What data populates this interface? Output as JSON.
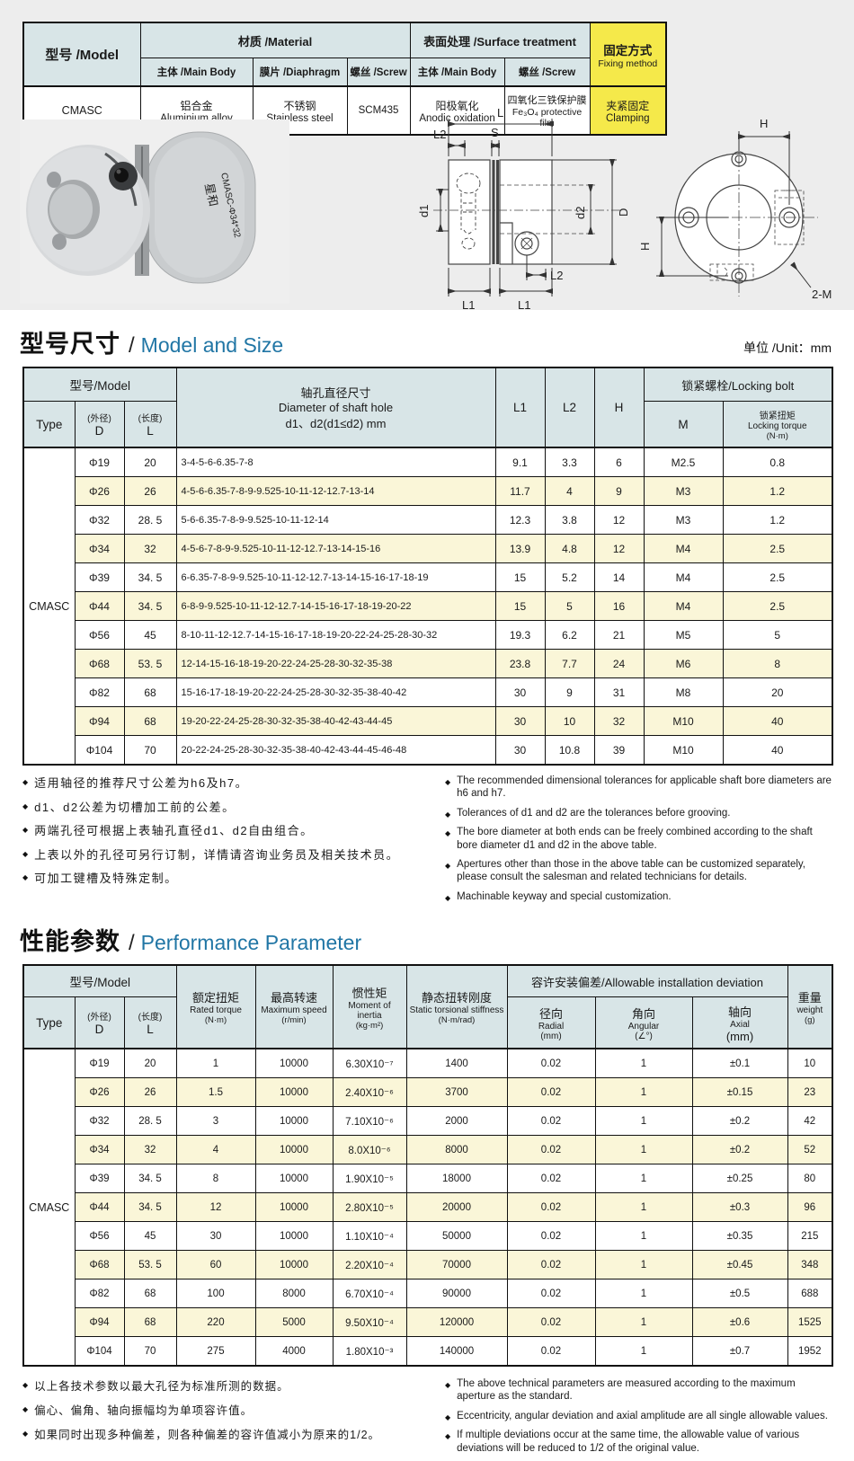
{
  "colors": {
    "accent_blue": "#2176a5",
    "header_bg": "#d8e5e7",
    "stripe_yellow": "#faf6d8",
    "highlight_yellow": "#f5e94a",
    "hero_grey": "#ededed"
  },
  "spec_table": {
    "header": {
      "model": "型号 /Model",
      "material": "材质 /Material",
      "surface": "表面处理 /Surface treatment",
      "fixing_zh": "固定方式",
      "fixing_en": "Fixing method",
      "main_body": "主体 /Main Body",
      "diaphragm": "膜片 /Diaphragm",
      "screw": "螺丝 /Screw",
      "surface_main_body": "主体 /Main Body",
      "surface_screw": "螺丝 /Screw"
    },
    "row": {
      "model": "CMASC",
      "main_body_zh": "铝合金",
      "main_body_en": "Aluminium alloy",
      "diaphragm_zh": "不锈钢",
      "diaphragm_en": "Stainless steel",
      "screw": "SCM435",
      "surface_main_zh": "阳极氧化",
      "surface_main_en": "Anodic oxidation",
      "surface_screw_zh": "四氧化三铁保护膜",
      "surface_screw_en": "Fe₃O₄ protective film",
      "fixing_zh": "夹紧固定",
      "fixing_en": "Clamping"
    }
  },
  "photo": {
    "brand": "星和",
    "model": "CMASC-Φ34*32"
  },
  "drawing_side": {
    "L": "L",
    "L2_top": "L2",
    "S": "S",
    "d1": "d1",
    "d2": "d2",
    "D": "D",
    "L1_left": "L1",
    "L1_right": "L1",
    "L2_bottom": "L2"
  },
  "drawing_front": {
    "H_top": "H",
    "H_left": "H",
    "bolt_label": "2-M"
  },
  "size_section": {
    "title_zh": "型号尺寸",
    "sep": "/",
    "title_en": "Model and Size",
    "unit": "单位 /Unit：mm"
  },
  "size_table": {
    "header": {
      "model_group": "型号/Model",
      "type": "Type",
      "d_zh": "(外径)",
      "d": "D",
      "l_zh": "(长度)",
      "l": "L",
      "diameter_zh": "轴孔直径尺寸",
      "diameter_en1": "Diameter of shaft hole",
      "diameter_en2": "d1、d2(d1≤d2) mm",
      "l1": "L1",
      "l2": "L2",
      "h": "H",
      "locking_group": "锁紧螺栓/Locking bolt",
      "m": "M",
      "torque_zh": "锁紧扭矩",
      "torque_en": "Locking torque",
      "torque_unit": "(N·m)"
    },
    "type_value": "CMASC",
    "rows": [
      [
        "Φ19",
        "20",
        "3-4-5-6-6.35-7-8",
        "9.1",
        "3.3",
        "6",
        "M2.5",
        "0.8"
      ],
      [
        "Φ26",
        "26",
        "4-5-6-6.35-7-8-9-9.525-10-11-12-12.7-13-14",
        "11.7",
        "4",
        "9",
        "M3",
        "1.2"
      ],
      [
        "Φ32",
        "28. 5",
        "5-6-6.35-7-8-9-9.525-10-11-12-14",
        "12.3",
        "3.8",
        "12",
        "M3",
        "1.2"
      ],
      [
        "Φ34",
        "32",
        "4-5-6-7-8-9-9.525-10-11-12-12.7-13-14-15-16",
        "13.9",
        "4.8",
        "12",
        "M4",
        "2.5"
      ],
      [
        "Φ39",
        "34. 5",
        "6-6.35-7-8-9-9.525-10-11-12-12.7-13-14-15-16-17-18-19",
        "15",
        "5.2",
        "14",
        "M4",
        "2.5"
      ],
      [
        "Φ44",
        "34. 5",
        "6-8-9-9.525-10-11-12-12.7-14-15-16-17-18-19-20-22",
        "15",
        "5",
        "16",
        "M4",
        "2.5"
      ],
      [
        "Φ56",
        "45",
        "8-10-11-12-12.7-14-15-16-17-18-19-20-22-24-25-28-30-32",
        "19.3",
        "6.2",
        "21",
        "M5",
        "5"
      ],
      [
        "Φ68",
        "53. 5",
        "12-14-15-16-18-19-20-22-24-25-28-30-32-35-38",
        "23.8",
        "7.7",
        "24",
        "M6",
        "8"
      ],
      [
        "Φ82",
        "68",
        "15-16-17-18-19-20-22-24-25-28-30-32-35-38-40-42",
        "30",
        "9",
        "31",
        "M8",
        "20"
      ],
      [
        "Φ94",
        "68",
        "19-20-22-24-25-28-30-32-35-38-40-42-43-44-45",
        "30",
        "10",
        "32",
        "M10",
        "40"
      ],
      [
        "Φ104",
        "70",
        "20-22-24-25-28-30-32-35-38-40-42-43-44-45-46-48",
        "30",
        "10.8",
        "39",
        "M10",
        "40"
      ]
    ]
  },
  "notes_mid": {
    "bullet_icon": "◆",
    "zh": [
      "适用轴径的推荐尺寸公差为h6及h7。",
      "d1、d2公差为切槽加工前的公差。",
      "两端孔径可根据上表轴孔直径d1、d2自由组合。",
      "上表以外的孔径可另行订制，详情请咨询业务员及相关技术员。",
      "可加工键槽及特殊定制。"
    ],
    "en": [
      "The recommended dimensional tolerances for applicable shaft bore diameters are h6 and h7.",
      "Tolerances of d1 and d2 are the tolerances before grooving.",
      "The bore diameter at both ends can be freely combined according to the shaft bore diameter d1 and d2 in the above table.",
      "Apertures other than those in the above table can be customized separately, please consult the salesman and related technicians for details.",
      "Machinable keyway and special customization."
    ]
  },
  "perf_section": {
    "title_zh": "性能参数",
    "sep": "/",
    "title_en": "Performance Parameter"
  },
  "perf_table": {
    "header": {
      "model_group": "型号/Model",
      "type": "Type",
      "d_zh": "(外径)",
      "d": "D",
      "l_zh": "(长度)",
      "l": "L",
      "torque_zh": "额定扭矩",
      "torque_en": "Rated torque",
      "torque_unit": "(N·m)",
      "speed_zh": "最高转速",
      "speed_en": "Maximum speed",
      "speed_unit": "(r/min)",
      "inertia_zh": "惯性矩",
      "inertia_en": "Moment of inertia",
      "inertia_unit": "(kg·m²)",
      "stiffness_zh": "静态扭转刚度",
      "stiffness_en": "Static torsional stiffness",
      "stiffness_unit": "(N·m/rad)",
      "deviation_group": "容许安装偏差/Allowable installation deviation",
      "radial_zh": "径向",
      "radial_en": "Radial",
      "radial_unit": "(mm)",
      "angular_zh": "角向",
      "angular_en": "Angular",
      "angular_unit": "(∠°)",
      "axial_zh": "轴向",
      "axial_en": "Axial",
      "axial_unit": "(mm)",
      "weight_zh": "重量",
      "weight_en": "weight",
      "weight_unit": "(g)"
    },
    "type_value": "CMASC",
    "rows": [
      [
        "Φ19",
        "20",
        "1",
        "10000",
        "6.30X10⁻⁷",
        "1400",
        "0.02",
        "1",
        "±0.1",
        "10"
      ],
      [
        "Φ26",
        "26",
        "1.5",
        "10000",
        "2.40X10⁻⁶",
        "3700",
        "0.02",
        "1",
        "±0.15",
        "23"
      ],
      [
        "Φ32",
        "28. 5",
        "3",
        "10000",
        "7.10X10⁻⁶",
        "2000",
        "0.02",
        "1",
        "±0.2",
        "42"
      ],
      [
        "Φ34",
        "32",
        "4",
        "10000",
        "8.0X10⁻⁶",
        "8000",
        "0.02",
        "1",
        "±0.2",
        "52"
      ],
      [
        "Φ39",
        "34. 5",
        "8",
        "10000",
        "1.90X10⁻⁵",
        "18000",
        "0.02",
        "1",
        "±0.25",
        "80"
      ],
      [
        "Φ44",
        "34. 5",
        "12",
        "10000",
        "2.80X10⁻⁵",
        "20000",
        "0.02",
        "1",
        "±0.3",
        "96"
      ],
      [
        "Φ56",
        "45",
        "30",
        "10000",
        "1.10X10⁻⁴",
        "50000",
        "0.02",
        "1",
        "±0.35",
        "215"
      ],
      [
        "Φ68",
        "53. 5",
        "60",
        "10000",
        "2.20X10⁻⁴",
        "70000",
        "0.02",
        "1",
        "±0.45",
        "348"
      ],
      [
        "Φ82",
        "68",
        "100",
        "8000",
        "6.70X10⁻⁴",
        "90000",
        "0.02",
        "1",
        "±0.5",
        "688"
      ],
      [
        "Φ94",
        "68",
        "220",
        "5000",
        "9.50X10⁻⁴",
        "120000",
        "0.02",
        "1",
        "±0.6",
        "1525"
      ],
      [
        "Φ104",
        "70",
        "275",
        "4000",
        "1.80X10⁻³",
        "140000",
        "0.02",
        "1",
        "±0.7",
        "1952"
      ]
    ]
  },
  "notes_bottom": {
    "bullet_icon": "◆",
    "zh": [
      "以上各技术参数以最大孔径为标准所测的数据。",
      "偏心、偏角、轴向振幅均为单项容许值。",
      "如果同时出现多种偏差，则各种偏差的容许值减小为原来的1/2。"
    ],
    "en": [
      "The above technical parameters are measured according to the maximum aperture as the standard.",
      "Eccentricity,  angular deviation and axial amplitude are all single allowable values.",
      "If multiple deviations occur at the same time, the allowable value of various deviations will be reduced to 1/2 of the original value."
    ]
  }
}
